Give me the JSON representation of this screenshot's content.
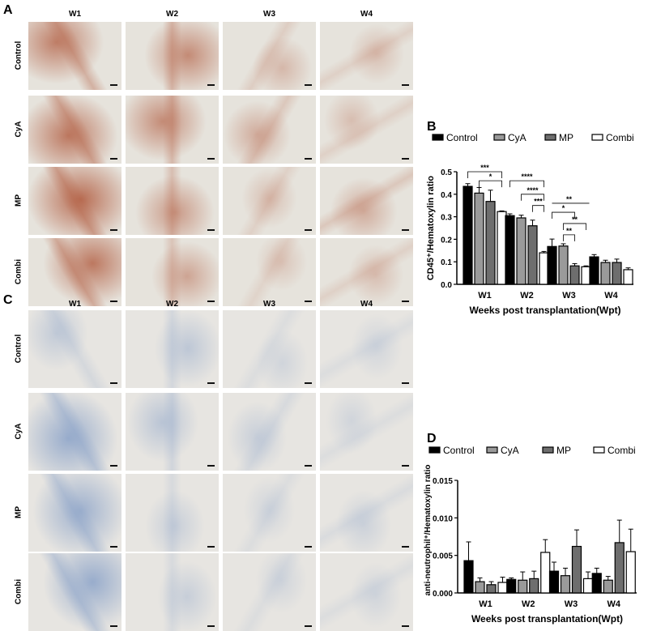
{
  "panel_a": {
    "label": "A",
    "columns": [
      "W1",
      "W2",
      "W3",
      "W4"
    ],
    "rows": [
      "Control",
      "CyA",
      "MP",
      "Combi"
    ],
    "stain_color": "#b5654a",
    "background_color": "#e6e3dc",
    "stain_intensity": [
      [
        0.8,
        0.7,
        0.35,
        0.3
      ],
      [
        0.85,
        0.7,
        0.45,
        0.3
      ],
      [
        0.95,
        0.6,
        0.3,
        0.45
      ],
      [
        0.85,
        0.5,
        0.25,
        0.3
      ]
    ]
  },
  "panel_c": {
    "label": "C",
    "columns": [
      "W1",
      "W2",
      "W3",
      "W4"
    ],
    "rows": [
      "Control",
      "CyA",
      "MP",
      "Combi"
    ],
    "stain_color": "#8aa2c8",
    "background_color": "#e7e5e1",
    "stain_intensity": [
      [
        0.4,
        0.45,
        0.25,
        0.25
      ],
      [
        0.85,
        0.5,
        0.35,
        0.25
      ],
      [
        0.8,
        0.35,
        0.25,
        0.3
      ],
      [
        0.85,
        0.35,
        0.25,
        0.25
      ]
    ]
  },
  "chart_data": [
    {
      "panel": "B",
      "type": "bar",
      "categories": [
        "W1",
        "W2",
        "W3",
        "W4"
      ],
      "xlabel": "Weeks post transplantation(Wpt)",
      "ylabel": "CD45⁺/Hematoxylin ratio",
      "ylim": [
        0,
        0.5
      ],
      "yticks": [
        "0.0",
        "0.1",
        "0.2",
        "0.3",
        "0.4",
        "0.5"
      ],
      "legend_position": "top",
      "series": [
        {
          "name": "Control",
          "color": "#000000",
          "values": [
            0.435,
            0.305,
            0.168,
            0.122
          ],
          "errors": [
            0.012,
            0.008,
            0.033,
            0.01
          ]
        },
        {
          "name": "CyA",
          "color": "#9a9a9a",
          "values": [
            0.405,
            0.295,
            0.17,
            0.097
          ],
          "errors": [
            0.025,
            0.012,
            0.01,
            0.01
          ]
        },
        {
          "name": "MP",
          "color": "#6e6e6e",
          "values": [
            0.368,
            0.26,
            0.082,
            0.097
          ],
          "errors": [
            0.05,
            0.025,
            0.01,
            0.015
          ]
        },
        {
          "name": "Combi",
          "color": "#ffffff",
          "values": [
            0.323,
            0.14,
            0.078,
            0.065
          ],
          "errors": [
            0.003,
            0.006,
            0.004,
            0.008
          ]
        }
      ],
      "significance": [
        {
          "category": "W1",
          "from": "Control",
          "to": "Combi",
          "label": "***",
          "level": 0.5
        },
        {
          "category": "W1",
          "from": "CyA",
          "to": "Combi",
          "label": "*",
          "level": 0.46
        },
        {
          "category": "W2",
          "from": "Control",
          "to": "Combi",
          "label": "****",
          "level": 0.46
        },
        {
          "category": "W2",
          "from": "CyA",
          "to": "Combi",
          "label": "****",
          "level": 0.4
        },
        {
          "category": "W2",
          "from": "MP",
          "to": "Combi",
          "label": "***",
          "level": 0.35
        },
        {
          "category": "W3",
          "from": "Control",
          "to": "Combi",
          "label": "**",
          "level": 0.36,
          "open": true
        },
        {
          "category": "W3",
          "from": "Control",
          "to": "MP",
          "label": "*",
          "level": 0.32
        },
        {
          "category": "W3",
          "from": "CyA",
          "to": "Combi",
          "label": "**",
          "level": 0.27
        },
        {
          "category": "W3",
          "from": "CyA",
          "to": "MP",
          "label": "**",
          "level": 0.22
        }
      ]
    },
    {
      "panel": "D",
      "type": "bar",
      "categories": [
        "W1",
        "W2",
        "W3",
        "W4"
      ],
      "xlabel": "Weeks post transplantation(Wpt)",
      "ylabel": "anti-neutrophil⁺/Hematoxylin ratio",
      "ylim": [
        0,
        0.015
      ],
      "yticks": [
        "0.000",
        "0.005",
        "0.010",
        "0.015"
      ],
      "legend_position": "top",
      "series": [
        {
          "name": "Control",
          "color": "#000000",
          "values": [
            0.0043,
            0.0018,
            0.0029,
            0.0026
          ],
          "errors": [
            0.0025,
            0.0002,
            0.0012,
            0.0007
          ]
        },
        {
          "name": "CyA",
          "color": "#9a9a9a",
          "values": [
            0.0015,
            0.0017,
            0.0023,
            0.0017
          ],
          "errors": [
            0.0005,
            0.0011,
            0.001,
            0.0005
          ]
        },
        {
          "name": "MP",
          "color": "#6e6e6e",
          "values": [
            0.0011,
            0.0019,
            0.0062,
            0.0067
          ],
          "errors": [
            0.0004,
            0.001,
            0.0022,
            0.003
          ]
        },
        {
          "name": "Combi",
          "color": "#ffffff",
          "values": [
            0.0014,
            0.0054,
            0.0019,
            0.0055
          ],
          "errors": [
            0.0007,
            0.0017,
            0.0009,
            0.003
          ]
        }
      ]
    }
  ]
}
